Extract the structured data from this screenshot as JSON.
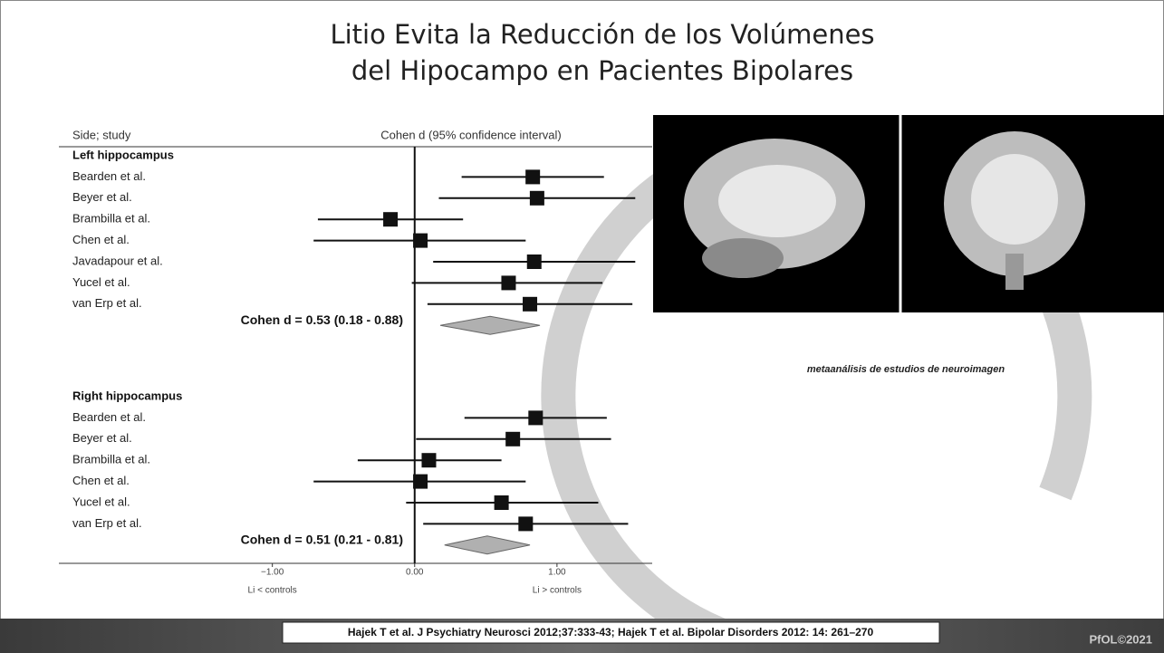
{
  "title": [
    "Litio Evita la Reducción de los Volúmenes",
    "del Hipocampo en Pacientes Bipolares"
  ],
  "chart_data": {
    "type": "forest",
    "column_headers": [
      "Side; study",
      "Cohen d (95% confidence interval)"
    ],
    "groups": [
      {
        "name": "Left hippocampus",
        "studies": [
          "Bearden et al.",
          "Beyer et al.",
          "Brambilla et al.",
          "Chen et al.",
          "Javadapour et al.",
          "Yucel et al.",
          "van Erp et al."
        ],
        "estimates": [
          0.83,
          0.86,
          -0.17,
          0.04,
          0.84,
          0.66,
          0.81
        ],
        "lower": [
          0.33,
          0.17,
          -0.68,
          -0.71,
          0.13,
          -0.02,
          0.09
        ],
        "upper": [
          1.33,
          1.55,
          0.34,
          0.78,
          1.55,
          1.32,
          1.53
        ],
        "summary": {
          "estimate": 0.53,
          "lower": 0.18,
          "upper": 0.88,
          "label": "Cohen d = 0.53 (0.18 - 0.88)"
        }
      },
      {
        "name": "Right hippocampus",
        "studies": [
          "Bearden et al.",
          "Beyer et al.",
          "Brambilla et al.",
          "Chen et al.",
          "Yucel et al.",
          "van Erp et al."
        ],
        "estimates": [
          0.85,
          0.69,
          0.1,
          0.04,
          0.61,
          0.78
        ],
        "lower": [
          0.35,
          0.01,
          -0.4,
          -0.71,
          -0.06,
          0.06
        ],
        "upper": [
          1.35,
          1.38,
          0.61,
          0.78,
          1.29,
          1.5
        ],
        "summary": {
          "estimate": 0.51,
          "lower": 0.21,
          "upper": 0.81,
          "label": "Cohen d = 0.51 (0.21 - 0.81)"
        }
      }
    ],
    "xlim": [
      -2.5,
      1.65
    ],
    "xticks": [
      {
        "value": -1,
        "label": "−1.00"
      },
      {
        "value": 0,
        "label": "0.00"
      },
      {
        "value": 1,
        "label": "1.00"
      }
    ],
    "x_axis_labels": [
      "Li < controls",
      "Li > controls"
    ],
    "color": "#111111",
    "summary_color": "#b0b0b0"
  },
  "image_caption": "metaanálisis de estudios de neuroimagen",
  "citation": "Hajek T et al. J Psychiatry Neurosci 2012;37:333-43; Hajek T et al. Bipolar Disorders 2012: 14: 261–270",
  "footer": "PfOL©2021"
}
